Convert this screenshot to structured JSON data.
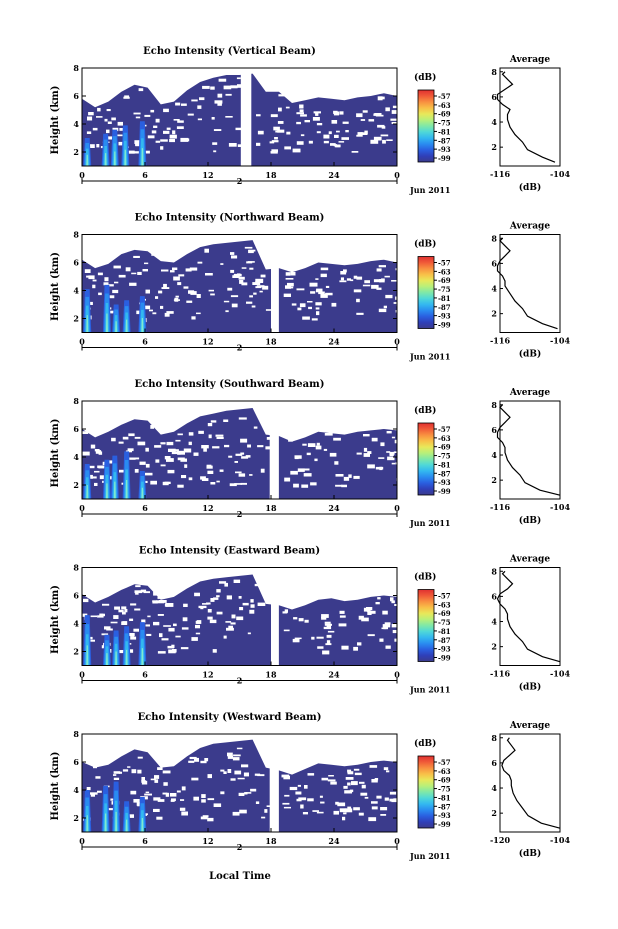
{
  "figure": {
    "colorbar_label": "(dB)",
    "colorbar_ticks": [
      "-57",
      "-63",
      "-69",
      "-75",
      "-81",
      "-87",
      "-93",
      "-99"
    ],
    "colorbar_colors": [
      "#3b3b8c",
      "#2f3fb8",
      "#2a5fe0",
      "#2a8cf0",
      "#33b8f0",
      "#4fd8d8",
      "#7fe8a8",
      "#b8f07a",
      "#e8e85a",
      "#f8c048",
      "#f89040",
      "#f05a38",
      "#e03030"
    ],
    "background_color": "#3b3b8c",
    "xlabel": "Local Time",
    "hour_ticks": [
      "0",
      "6",
      "12",
      "18",
      "24",
      "0"
    ],
    "day_tick": "2",
    "month_label": "Jun 2011",
    "height_label": "Height (km)",
    "height_ticks": [
      "2",
      "4",
      "6",
      "8"
    ],
    "avg_title": "Average",
    "avg_xlabel": "(dB)",
    "avg_yticks": [
      "2",
      "4",
      "6",
      "8"
    ]
  },
  "chart_data": [
    {
      "type": "heatmap",
      "title": "Echo Intensity (Vertical Beam)",
      "xlabel": "",
      "ylabel": "Height (km)",
      "xlim": [
        0,
        24
      ],
      "ylim": [
        1,
        8
      ],
      "echo_top_km": [
        5.8,
        5.2,
        5.6,
        6.3,
        6.8,
        6.6,
        5.4,
        5.6,
        6.4,
        7.0,
        7.3,
        7.5,
        7.5,
        7.6,
        6.3,
        6.3,
        5.5,
        5.7,
        5.9,
        5.8,
        5.7,
        5.9,
        6.0,
        6.2,
        6.0
      ],
      "gap_hours": [
        12.1,
        12.9
      ],
      "strong_echo_hours": [
        0.4,
        1.8,
        2.5,
        3.3,
        4.6
      ],
      "avg_profile": {
        "xlim": [
          -116,
          -104
        ],
        "x_ticks": [
          "-116",
          "-104"
        ],
        "height_km": [
          0.8,
          1.2,
          1.8,
          2.4,
          3.0,
          3.6,
          4.2,
          4.6,
          5.0,
          5.4,
          5.8,
          6.2,
          6.6,
          7.0,
          7.4,
          7.8,
          8.0
        ],
        "db": [
          -105,
          -107.5,
          -110.5,
          -111.5,
          -113,
          -114,
          -114.5,
          -114.5,
          -114,
          -115.5,
          -116.5,
          -116.5,
          -115,
          -113.5,
          -114.5,
          -115.5,
          -115
        ]
      }
    },
    {
      "type": "heatmap",
      "title": "Echo Intensity (Northward Beam)",
      "xlabel": "",
      "ylabel": "Height (km)",
      "xlim": [
        0,
        24
      ],
      "ylim": [
        1,
        8
      ],
      "echo_top_km": [
        6.2,
        5.6,
        5.9,
        6.6,
        6.9,
        6.8,
        6.1,
        6.0,
        6.6,
        7.1,
        7.3,
        7.4,
        7.5,
        7.6,
        5.5,
        5.6,
        5.3,
        5.6,
        6.0,
        5.9,
        5.8,
        5.9,
        6.1,
        6.2,
        6.0
      ],
      "gap_hours": [
        14.4,
        15.0
      ],
      "strong_echo_hours": [
        0.4,
        1.9,
        2.6,
        3.4,
        4.6
      ],
      "avg_profile": {
        "xlim": [
          -116,
          -104
        ],
        "x_ticks": [
          "-116",
          "-104"
        ],
        "height_km": [
          0.8,
          1.2,
          1.8,
          2.4,
          3.0,
          3.6,
          4.2,
          4.6,
          5.0,
          5.4,
          5.8,
          6.2,
          6.6,
          7.0,
          7.4,
          7.8,
          8.0
        ],
        "db": [
          -104.5,
          -107.5,
          -110.5,
          -111.5,
          -113,
          -114,
          -115,
          -115,
          -115.5,
          -116.5,
          -116.5,
          -116,
          -115,
          -114,
          -115,
          -116,
          -115.5
        ]
      }
    },
    {
      "type": "heatmap",
      "title": "Echo Intensity (Southward Beam)",
      "xlabel": "",
      "ylabel": "Height (km)",
      "xlim": [
        0,
        24
      ],
      "ylim": [
        1,
        8
      ],
      "echo_top_km": [
        6.0,
        5.4,
        5.8,
        6.3,
        6.7,
        6.6,
        5.6,
        5.8,
        6.4,
        6.9,
        7.1,
        7.3,
        7.4,
        7.5,
        5.6,
        5.5,
        5.1,
        5.4,
        5.8,
        5.7,
        5.6,
        5.8,
        5.9,
        6.0,
        5.9
      ],
      "gap_hours": [
        14.3,
        15.0
      ],
      "strong_echo_hours": [
        0.4,
        1.9,
        2.5,
        3.4,
        4.6
      ],
      "avg_profile": {
        "xlim": [
          -116,
          -104
        ],
        "x_ticks": [
          "-116",
          "-104"
        ],
        "height_km": [
          0.8,
          1.2,
          1.8,
          2.4,
          3.0,
          3.6,
          4.2,
          4.6,
          5.0,
          5.4,
          5.8,
          6.2,
          6.6,
          7.0,
          7.4,
          7.8,
          8.0
        ],
        "db": [
          -104,
          -108,
          -111,
          -112,
          -113.5,
          -114.5,
          -115,
          -115,
          -115.5,
          -116.5,
          -116.5,
          -116,
          -115,
          -114,
          -115,
          -116,
          -115.5
        ]
      }
    },
    {
      "type": "heatmap",
      "title": "Echo Intensity (Eastward Beam)",
      "xlabel": "",
      "ylabel": "Height (km)",
      "xlim": [
        0,
        24
      ],
      "ylim": [
        1,
        8
      ],
      "echo_top_km": [
        6.1,
        5.5,
        5.9,
        6.4,
        6.8,
        6.7,
        5.7,
        5.9,
        6.5,
        7.0,
        7.2,
        7.3,
        7.4,
        7.5,
        5.4,
        5.3,
        5.0,
        5.3,
        5.7,
        5.8,
        5.6,
        5.7,
        5.9,
        6.0,
        5.9
      ],
      "gap_hours": [
        14.4,
        15.0
      ],
      "strong_echo_hours": [
        0.4,
        1.9,
        2.6,
        3.4,
        4.6
      ],
      "avg_profile": {
        "xlim": [
          -116,
          -104
        ],
        "x_ticks": [
          "-116",
          "-104"
        ],
        "height_km": [
          0.8,
          1.2,
          1.8,
          2.4,
          3.0,
          3.6,
          4.2,
          4.6,
          5.0,
          5.4,
          5.8,
          6.2,
          6.6,
          7.0,
          7.4,
          7.8,
          8.0
        ],
        "db": [
          -104,
          -107.5,
          -110.5,
          -111.5,
          -113,
          -114,
          -114.5,
          -114.5,
          -115,
          -116,
          -116.5,
          -116,
          -114.5,
          -113.5,
          -114.5,
          -115.5,
          -115
        ]
      }
    },
    {
      "type": "heatmap",
      "title": "Echo Intensity (Westward Beam)",
      "xlabel": "Local Time",
      "ylabel": "Height (km)",
      "xlim": [
        0,
        24
      ],
      "ylim": [
        1,
        8
      ],
      "echo_top_km": [
        6.0,
        5.6,
        5.8,
        6.4,
        6.9,
        6.7,
        5.6,
        5.7,
        6.4,
        7.0,
        7.3,
        7.4,
        7.5,
        7.6,
        5.6,
        5.4,
        5.1,
        5.5,
        5.9,
        5.8,
        5.7,
        5.8,
        6.0,
        6.1,
        6.0
      ],
      "gap_hours": [
        14.3,
        15.0
      ],
      "strong_echo_hours": [
        0.4,
        1.8,
        2.6,
        3.4,
        4.6
      ],
      "avg_profile": {
        "xlim": [
          -120,
          -104
        ],
        "x_ticks": [
          "-120",
          "-104"
        ],
        "height_km": [
          0.8,
          1.2,
          1.8,
          2.4,
          3.0,
          3.6,
          4.2,
          4.6,
          5.0,
          5.4,
          5.8,
          6.2,
          6.6,
          7.0,
          7.4,
          7.8,
          8.0
        ],
        "db": [
          -104,
          -109,
          -112.5,
          -114,
          -115.5,
          -116.5,
          -117,
          -117,
          -117.5,
          -119,
          -119.5,
          -119,
          -117.5,
          -116,
          -117,
          -118,
          -117.5
        ]
      }
    }
  ]
}
